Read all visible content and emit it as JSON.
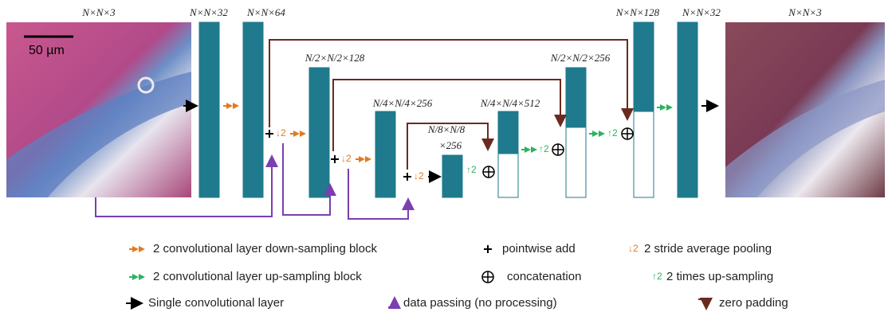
{
  "labels": {
    "input": "N×N×3",
    "enc1": "N×N×32",
    "enc2": "N×N×64",
    "enc3": "N/2×N/2×128",
    "enc4": "N/4×N/4×256",
    "bottom_a": "N/8×N/8",
    "bottom_b": "×256",
    "dec1": "N/4×N/4×512",
    "dec2": "N/2×N/2×256",
    "dec3": "N×N×128",
    "dec4": "N×N×32",
    "output": "N×N×3"
  },
  "scale_bar": "50 µm",
  "symbols": {
    "down": "↓2",
    "up": "↑2"
  },
  "legend": {
    "down_block": "2 convolutional layer down-sampling block",
    "up_block": "2 convolutional layer up-sampling block",
    "single": "Single convolutional layer",
    "add": "pointwise add",
    "concat": "concatenation",
    "passing": "data passing (no processing)",
    "pooling": "2 stride average pooling",
    "upsampling": "2 times up-sampling",
    "padding": "zero padding"
  }
}
